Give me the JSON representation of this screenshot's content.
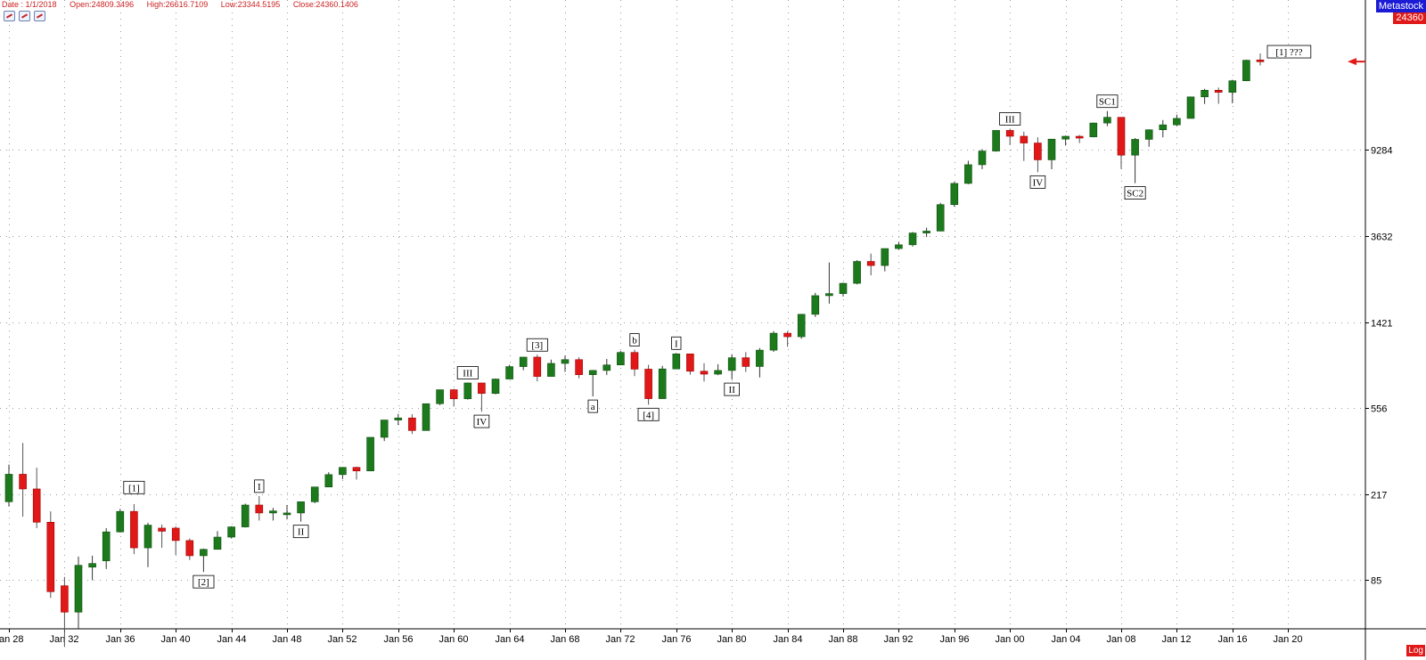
{
  "header": {
    "date": "Date : 1/1/2018",
    "open": "Open:24809.3496",
    "high": "High:26616.7109",
    "low": "Low:23344.5195",
    "close": "Close:24360.1406"
  },
  "toolbar": {
    "icons": [
      "chart-tool-icon",
      "chart-tool-icon",
      "chart-tool-icon"
    ]
  },
  "brand": "Metastock",
  "last_price": "24360",
  "scale_mode": "Log",
  "colors": {
    "up": "#1c7a1c",
    "down": "#e01818",
    "grid": "#9a9a9a",
    "label_red": "#cc2222"
  },
  "chart_data": {
    "type": "candlestick",
    "y_scale": "log",
    "ylim": [
      50,
      45000
    ],
    "y_ticks": [
      85,
      217,
      556,
      1421,
      3632,
      9284
    ],
    "x_ticks": [
      "Jan 28",
      "Jan 32",
      "Jan 36",
      "Jan 40",
      "Jan 44",
      "Jan 48",
      "Jan 52",
      "Jan 56",
      "Jan 60",
      "Jan 64",
      "Jan 68",
      "Jan 72",
      "Jan 76",
      "Jan 80",
      "Jan 84",
      "Jan 88",
      "Jan 92",
      "Jan 96",
      "Jan 00",
      "Jan 04",
      "Jan 08",
      "Jan 12",
      "Jan 16",
      "Jan 20"
    ],
    "x_tick_years": [
      1928,
      1932,
      1936,
      1940,
      1944,
      1948,
      1952,
      1956,
      1960,
      1964,
      1968,
      1972,
      1976,
      1980,
      1984,
      1988,
      1992,
      1996,
      2000,
      2004,
      2008,
      2012,
      2016,
      2020
    ],
    "candles": [
      {
        "year": 1928,
        "o": 200,
        "h": 300,
        "l": 190,
        "c": 270
      },
      {
        "year": 1929,
        "o": 270,
        "h": 380,
        "l": 170,
        "c": 230
      },
      {
        "year": 1930,
        "o": 230,
        "h": 290,
        "l": 150,
        "c": 160
      },
      {
        "year": 1931,
        "o": 160,
        "h": 180,
        "l": 70,
        "c": 75
      },
      {
        "year": 1932,
        "o": 80,
        "h": 88,
        "l": 41,
        "c": 60
      },
      {
        "year": 1933,
        "o": 60,
        "h": 110,
        "l": 50,
        "c": 100
      },
      {
        "year": 1934,
        "o": 98,
        "h": 111,
        "l": 85,
        "c": 102
      },
      {
        "year": 1935,
        "o": 105,
        "h": 150,
        "l": 96,
        "c": 144
      },
      {
        "year": 1936,
        "o": 144,
        "h": 185,
        "l": 143,
        "c": 180
      },
      {
        "year": 1937,
        "o": 180,
        "h": 195,
        "l": 113,
        "c": 121
      },
      {
        "year": 1938,
        "o": 121,
        "h": 159,
        "l": 98,
        "c": 155
      },
      {
        "year": 1939,
        "o": 150,
        "h": 156,
        "l": 121,
        "c": 145
      },
      {
        "year": 1940,
        "o": 150,
        "h": 153,
        "l": 112,
        "c": 131
      },
      {
        "year": 1941,
        "o": 131,
        "h": 134,
        "l": 106,
        "c": 111
      },
      {
        "year": 1942,
        "o": 111,
        "h": 120,
        "l": 93,
        "c": 119
      },
      {
        "year": 1943,
        "o": 119,
        "h": 145,
        "l": 119,
        "c": 136
      },
      {
        "year": 1944,
        "o": 136,
        "h": 153,
        "l": 134,
        "c": 152
      },
      {
        "year": 1945,
        "o": 152,
        "h": 196,
        "l": 151,
        "c": 193
      },
      {
        "year": 1946,
        "o": 193,
        "h": 213,
        "l": 163,
        "c": 177
      },
      {
        "year": 1947,
        "o": 177,
        "h": 187,
        "l": 163,
        "c": 181
      },
      {
        "year": 1948,
        "o": 177,
        "h": 193,
        "l": 165,
        "c": 177
      },
      {
        "year": 1949,
        "o": 177,
        "h": 200,
        "l": 161,
        "c": 200
      },
      {
        "year": 1950,
        "o": 200,
        "h": 235,
        "l": 197,
        "c": 235
      },
      {
        "year": 1951,
        "o": 235,
        "h": 276,
        "l": 238,
        "c": 269
      },
      {
        "year": 1952,
        "o": 269,
        "h": 292,
        "l": 256,
        "c": 291
      },
      {
        "year": 1953,
        "o": 291,
        "h": 293,
        "l": 255,
        "c": 280
      },
      {
        "year": 1954,
        "o": 280,
        "h": 404,
        "l": 279,
        "c": 404
      },
      {
        "year": 1955,
        "o": 404,
        "h": 488,
        "l": 388,
        "c": 488
      },
      {
        "year": 1956,
        "o": 488,
        "h": 521,
        "l": 462,
        "c": 499
      },
      {
        "year": 1957,
        "o": 499,
        "h": 520,
        "l": 419,
        "c": 435
      },
      {
        "year": 1958,
        "o": 435,
        "h": 583,
        "l": 436,
        "c": 583
      },
      {
        "year": 1959,
        "o": 583,
        "h": 679,
        "l": 574,
        "c": 679
      },
      {
        "year": 1960,
        "o": 679,
        "h": 685,
        "l": 566,
        "c": 615
      },
      {
        "year": 1961,
        "o": 615,
        "h": 734,
        "l": 610,
        "c": 731
      },
      {
        "year": 1962,
        "o": 731,
        "h": 726,
        "l": 535,
        "c": 652
      },
      {
        "year": 1963,
        "o": 652,
        "h": 767,
        "l": 646,
        "c": 763
      },
      {
        "year": 1964,
        "o": 763,
        "h": 891,
        "l": 766,
        "c": 874
      },
      {
        "year": 1965,
        "o": 874,
        "h": 969,
        "l": 840,
        "c": 969
      },
      {
        "year": 1966,
        "o": 969,
        "h": 995,
        "l": 744,
        "c": 785
      },
      {
        "year": 1967,
        "o": 785,
        "h": 943,
        "l": 786,
        "c": 905
      },
      {
        "year": 1968,
        "o": 905,
        "h": 985,
        "l": 825,
        "c": 943
      },
      {
        "year": 1969,
        "o": 943,
        "h": 968,
        "l": 769,
        "c": 800
      },
      {
        "year": 1970,
        "o": 800,
        "h": 842,
        "l": 631,
        "c": 838
      },
      {
        "year": 1971,
        "o": 838,
        "h": 950,
        "l": 797,
        "c": 890
      },
      {
        "year": 1972,
        "o": 890,
        "h": 1036,
        "l": 889,
        "c": 1020
      },
      {
        "year": 1973,
        "o": 1020,
        "h": 1051,
        "l": 788,
        "c": 850
      },
      {
        "year": 1974,
        "o": 850,
        "h": 891,
        "l": 577,
        "c": 616
      },
      {
        "year": 1975,
        "o": 616,
        "h": 881,
        "l": 632,
        "c": 852
      },
      {
        "year": 1976,
        "o": 852,
        "h": 1014,
        "l": 858,
        "c": 1004
      },
      {
        "year": 1977,
        "o": 1004,
        "h": 999,
        "l": 800,
        "c": 831
      },
      {
        "year": 1978,
        "o": 831,
        "h": 907,
        "l": 742,
        "c": 805
      },
      {
        "year": 1979,
        "o": 805,
        "h": 897,
        "l": 796,
        "c": 838
      },
      {
        "year": 1980,
        "o": 838,
        "h": 1000,
        "l": 759,
        "c": 963
      },
      {
        "year": 1981,
        "o": 963,
        "h": 1024,
        "l": 824,
        "c": 875
      },
      {
        "year": 1982,
        "o": 875,
        "h": 1070,
        "l": 776,
        "c": 1046
      },
      {
        "year": 1983,
        "o": 1046,
        "h": 1287,
        "l": 1027,
        "c": 1258
      },
      {
        "year": 1984,
        "o": 1258,
        "h": 1286,
        "l": 1086,
        "c": 1211
      },
      {
        "year": 1985,
        "o": 1211,
        "h": 1553,
        "l": 1184,
        "c": 1546
      },
      {
        "year": 1986,
        "o": 1546,
        "h": 1955,
        "l": 1502,
        "c": 1895
      },
      {
        "year": 1987,
        "o": 1895,
        "h": 2722,
        "l": 1738,
        "c": 1938
      },
      {
        "year": 1988,
        "o": 1938,
        "h": 2183,
        "l": 1879,
        "c": 2168
      },
      {
        "year": 1989,
        "o": 2168,
        "h": 2791,
        "l": 2144,
        "c": 2753
      },
      {
        "year": 1990,
        "o": 2753,
        "h": 2999,
        "l": 2365,
        "c": 2633
      },
      {
        "year": 1991,
        "o": 2633,
        "h": 3168,
        "l": 2470,
        "c": 3168
      },
      {
        "year": 1992,
        "o": 3168,
        "h": 3413,
        "l": 3136,
        "c": 3301
      },
      {
        "year": 1993,
        "o": 3301,
        "h": 3794,
        "l": 3241,
        "c": 3754
      },
      {
        "year": 1994,
        "o": 3754,
        "h": 3978,
        "l": 3593,
        "c": 3834
      },
      {
        "year": 1995,
        "o": 3834,
        "h": 5216,
        "l": 3832,
        "c": 5117
      },
      {
        "year": 1996,
        "o": 5117,
        "h": 6560,
        "l": 5000,
        "c": 6448
      },
      {
        "year": 1997,
        "o": 6448,
        "h": 8259,
        "l": 6391,
        "c": 7908
      },
      {
        "year": 1998,
        "o": 7908,
        "h": 9374,
        "l": 7539,
        "c": 9181
      },
      {
        "year": 1999,
        "o": 9181,
        "h": 11497,
        "l": 9120,
        "c": 11497
      },
      {
        "year": 2000,
        "o": 11497,
        "h": 11723,
        "l": 9796,
        "c": 10787
      },
      {
        "year": 2001,
        "o": 10787,
        "h": 11337,
        "l": 8236,
        "c": 10021
      },
      {
        "year": 2002,
        "o": 10021,
        "h": 10673,
        "l": 7286,
        "c": 8342
      },
      {
        "year": 2003,
        "o": 8342,
        "h": 10454,
        "l": 7524,
        "c": 10454
      },
      {
        "year": 2004,
        "o": 10454,
        "h": 10868,
        "l": 9749,
        "c": 10783
      },
      {
        "year": 2005,
        "o": 10783,
        "h": 10940,
        "l": 10012,
        "c": 10718
      },
      {
        "year": 2006,
        "o": 10718,
        "h": 12510,
        "l": 10661,
        "c": 12463
      },
      {
        "year": 2007,
        "o": 12463,
        "h": 14198,
        "l": 12050,
        "c": 13265
      },
      {
        "year": 2008,
        "o": 13265,
        "h": 13279,
        "l": 7552,
        "c": 8776
      },
      {
        "year": 2009,
        "o": 8776,
        "h": 10580,
        "l": 6470,
        "c": 10428
      },
      {
        "year": 2010,
        "o": 10428,
        "h": 11625,
        "l": 9614,
        "c": 11578
      },
      {
        "year": 2011,
        "o": 11578,
        "h": 12876,
        "l": 10655,
        "c": 12218
      },
      {
        "year": 2012,
        "o": 12218,
        "h": 13661,
        "l": 12035,
        "c": 13104
      },
      {
        "year": 2013,
        "o": 13104,
        "h": 16588,
        "l": 13104,
        "c": 16577
      },
      {
        "year": 2014,
        "o": 16577,
        "h": 18103,
        "l": 15340,
        "c": 17823
      },
      {
        "year": 2015,
        "o": 17823,
        "h": 18351,
        "l": 15370,
        "c": 17425
      },
      {
        "year": 2016,
        "o": 17425,
        "h": 19987,
        "l": 15450,
        "c": 19763
      },
      {
        "year": 2017,
        "o": 19763,
        "h": 24876,
        "l": 19677,
        "c": 24719
      },
      {
        "year": 2018,
        "o": 24809,
        "h": 26616,
        "l": 23344,
        "c": 24360
      }
    ],
    "annotations": [
      {
        "text": "[1]",
        "year": 1937,
        "price": 210,
        "pos": "above"
      },
      {
        "text": "[2]",
        "year": 1942,
        "price": 93,
        "pos": "below"
      },
      {
        "text": "I",
        "year": 1946,
        "price": 213,
        "pos": "above"
      },
      {
        "text": "II",
        "year": 1949,
        "price": 161,
        "pos": "below"
      },
      {
        "text": "III",
        "year": 1961,
        "price": 734,
        "pos": "above"
      },
      {
        "text": "IV",
        "year": 1962,
        "price": 535,
        "pos": "below"
      },
      {
        "text": "[3]",
        "year": 1966,
        "price": 995,
        "pos": "above"
      },
      {
        "text": "a",
        "year": 1970,
        "price": 631,
        "pos": "below"
      },
      {
        "text": "b",
        "year": 1973,
        "price": 1051,
        "pos": "above"
      },
      {
        "text": "[4]",
        "year": 1974,
        "price": 577,
        "pos": "below"
      },
      {
        "text": "I",
        "year": 1976,
        "price": 1014,
        "pos": "above"
      },
      {
        "text": "II",
        "year": 1980,
        "price": 759,
        "pos": "below"
      },
      {
        "text": "III",
        "year": 2000,
        "price": 11723,
        "pos": "above"
      },
      {
        "text": "IV",
        "year": 2002,
        "price": 7286,
        "pos": "below"
      },
      {
        "text": "SC1",
        "year": 2007,
        "price": 14198,
        "pos": "above"
      },
      {
        "text": "SC2",
        "year": 2009,
        "price": 6470,
        "pos": "below"
      },
      {
        "text": "[1] ???",
        "year": 2018,
        "price": 26616,
        "pos": "right"
      }
    ]
  }
}
